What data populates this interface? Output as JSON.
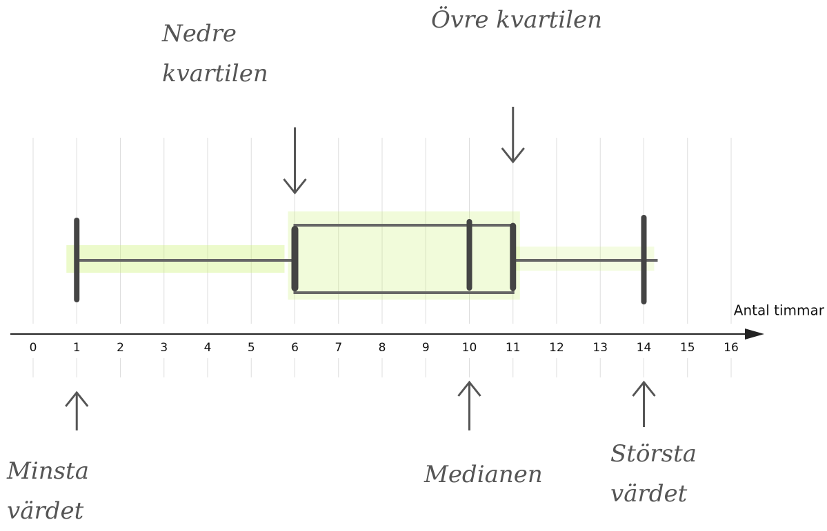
{
  "chart_data": {
    "type": "box",
    "x_label": "Antal timmar",
    "xlim": [
      0,
      16
    ],
    "xticks": [
      0,
      1,
      2,
      3,
      4,
      5,
      6,
      7,
      8,
      9,
      10,
      11,
      12,
      13,
      14,
      15,
      16
    ],
    "box": {
      "min": 1,
      "q1": 6,
      "median": 10,
      "q3": 11,
      "max": 14
    },
    "color": "#666666",
    "highlight": "#c8f06a",
    "grid": true,
    "annotations": [
      {
        "text": "Nedre kvartilen",
        "x": 6
      },
      {
        "text": "Övre kvartilen",
        "x": 11
      },
      {
        "text": "Minsta värdet",
        "x": 1
      },
      {
        "text": "Medianen",
        "x": 10
      },
      {
        "text": "Största värdet",
        "x": 14
      }
    ]
  }
}
